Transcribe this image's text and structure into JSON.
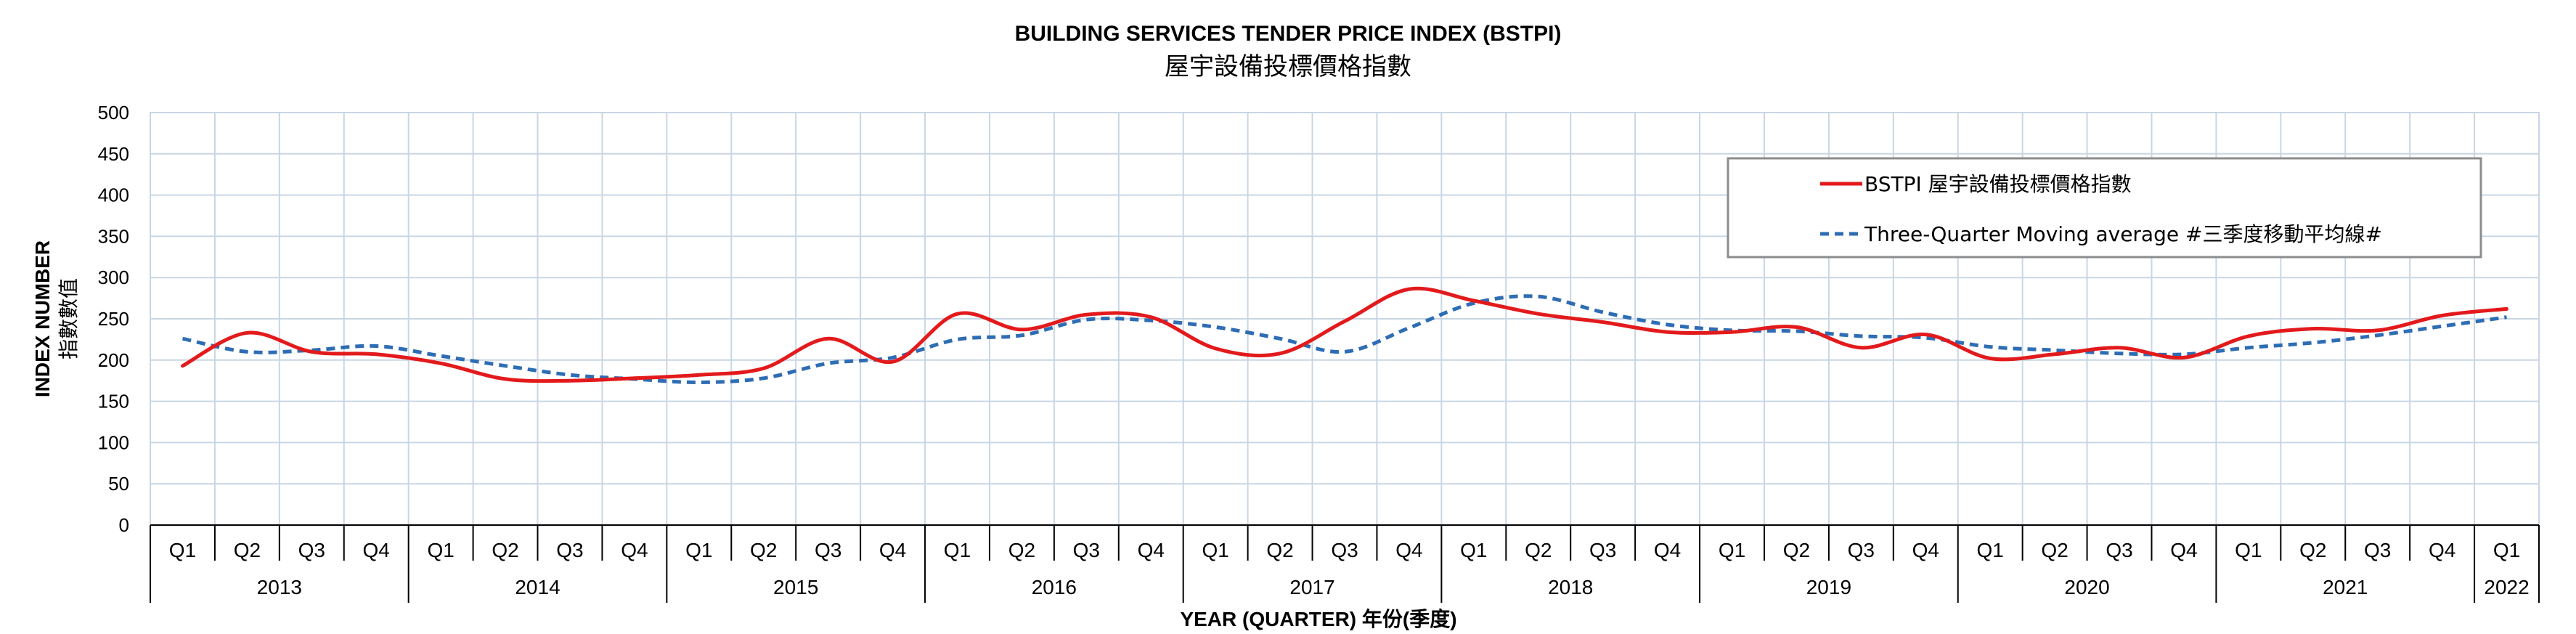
{
  "chart_data": {
    "type": "line",
    "title": "BUILDING SERVICES TENDER PRICE INDEX (BSTPI)",
    "subtitle": "屋宇設備投標價格指數",
    "ylabel": "INDEX NUMBER",
    "ylabel_cn": "指數數值",
    "xlabel": "YEAR (QUARTER) 年份(季度)",
    "ylim": [
      0,
      500
    ],
    "yticks": [
      0,
      50,
      100,
      150,
      200,
      250,
      300,
      350,
      400,
      450,
      500
    ],
    "grid": true,
    "legend_position": "top-right",
    "categories": [
      "Q1",
      "Q2",
      "Q3",
      "Q4",
      "Q1",
      "Q2",
      "Q3",
      "Q4",
      "Q1",
      "Q2",
      "Q3",
      "Q4",
      "Q1",
      "Q2",
      "Q3",
      "Q4",
      "Q1",
      "Q2",
      "Q3",
      "Q4",
      "Q1",
      "Q2",
      "Q3",
      "Q4",
      "Q1",
      "Q2",
      "Q3",
      "Q4",
      "Q1",
      "Q2",
      "Q3",
      "Q4",
      "Q1",
      "Q2",
      "Q3",
      "Q4",
      "Q1"
    ],
    "years": [
      {
        "label": "2013",
        "span": 4
      },
      {
        "label": "2014",
        "span": 4
      },
      {
        "label": "2015",
        "span": 4
      },
      {
        "label": "2016",
        "span": 4
      },
      {
        "label": "2017",
        "span": 4
      },
      {
        "label": "2018",
        "span": 4
      },
      {
        "label": "2019",
        "span": 4
      },
      {
        "label": "2020",
        "span": 4
      },
      {
        "label": "2021",
        "span": 4
      },
      {
        "label": "2022",
        "span": 1
      }
    ],
    "series": [
      {
        "name": "BSTPI 屋宇設備投標價格指數",
        "color": "#e31a1c",
        "style": "solid",
        "values": [
          193,
          233,
          210,
          207,
          196,
          177,
          175,
          178,
          182,
          190,
          226,
          198,
          256,
          237,
          255,
          252,
          214,
          208,
          247,
          286,
          272,
          256,
          246,
          234,
          234,
          240,
          215,
          231,
          202,
          207,
          215,
          203,
          229,
          238,
          236,
          254,
          262
        ]
      },
      {
        "name": "Three-Quarter Moving average #三季度移動平均線#",
        "color": "#2e6db4",
        "style": "dashed",
        "values": [
          226,
          210,
          212,
          217,
          205,
          193,
          182,
          177,
          173,
          178,
          196,
          203,
          225,
          230,
          249,
          248,
          240,
          226,
          210,
          239,
          269,
          277,
          258,
          243,
          236,
          235,
          229,
          227,
          216,
          212,
          208,
          207,
          215,
          221,
          230,
          241,
          252
        ]
      }
    ]
  }
}
